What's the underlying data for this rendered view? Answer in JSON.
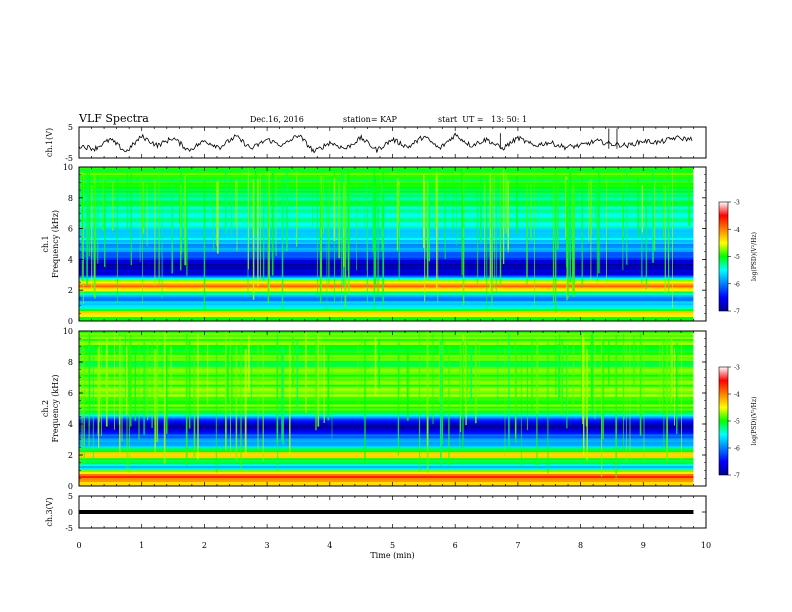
{
  "header": {
    "title": "VLF Spectra",
    "date": "Dec.16, 2016",
    "station": "station= KAP",
    "start": "start  UT =   13: 50: 1"
  },
  "chart_data": [
    {
      "type": "line",
      "panel": "ch1-waveform",
      "ylabel": "ch.1(V)",
      "ylim": [
        -5,
        5
      ],
      "yticks": [
        "5",
        "-5"
      ],
      "xlim": [
        0,
        10
      ],
      "series": [
        {
          "x": [
            0,
            0.25,
            0.5,
            0.75,
            1,
            1.25,
            1.5,
            1.75,
            2,
            2.25,
            2.5,
            2.75,
            3,
            3.25,
            3.5,
            3.75,
            4,
            4.25,
            4.5,
            4.75,
            5,
            5.25,
            5.5,
            5.75,
            6,
            6.25,
            6.5,
            6.75,
            7,
            7.25,
            7.5,
            7.75,
            8,
            8.25,
            8.5,
            8.75,
            9,
            9.25,
            9.5,
            9.8
          ],
          "values": [
            -1,
            -2,
            1,
            -3,
            2,
            -1,
            1.5,
            -2.5,
            0.5,
            -1.5,
            2,
            -2,
            1,
            -1,
            2.5,
            -3,
            0,
            -2,
            1.5,
            -2.5,
            1,
            -1.5,
            2,
            -2,
            2.5,
            -1,
            1,
            -2,
            1.5,
            -1,
            0,
            -1.5,
            -1,
            0.5,
            -0.5,
            -1,
            0.5,
            0,
            1.5,
            1
          ]
        }
      ]
    },
    {
      "type": "heatmap",
      "panel": "ch1-spectrogram",
      "ylabel": "ch.1\nFrequency (kHz)",
      "xlim": [
        0,
        10
      ],
      "ylim": [
        0,
        10
      ],
      "yticks": [
        "0",
        "2",
        "4",
        "6",
        "8",
        "10"
      ],
      "colorbar": {
        "label": "log(PSD)(V²/Hz)",
        "range": [
          -7,
          -3
        ],
        "ticks": [
          "-3",
          "-4",
          "-5",
          "-6",
          "-7"
        ]
      },
      "band_levels": [
        {
          "freq_khz": 0.2,
          "level": -5.0
        },
        {
          "freq_khz": 0.5,
          "level": -4.0
        },
        {
          "freq_khz": 0.8,
          "level": -5.5
        },
        {
          "freq_khz": 1.5,
          "level": -6.0
        },
        {
          "freq_khz": 2.0,
          "level": -4.5
        },
        {
          "freq_khz": 2.3,
          "level": -3.6
        },
        {
          "freq_khz": 3.0,
          "level": -6.5
        },
        {
          "freq_khz": 3.5,
          "level": -6.9
        },
        {
          "freq_khz": 4.5,
          "level": -6.0
        },
        {
          "freq_khz": 6.0,
          "level": -5.5
        },
        {
          "freq_khz": 8.0,
          "level": -5.2
        },
        {
          "freq_khz": 9.5,
          "level": -5.0
        }
      ]
    },
    {
      "type": "heatmap",
      "panel": "ch2-spectrogram",
      "ylabel": "ch.2\nFrequency (kHz)",
      "xlim": [
        0,
        10
      ],
      "ylim": [
        0,
        10
      ],
      "yticks": [
        "0",
        "2",
        "4",
        "6",
        "8",
        "10"
      ],
      "colorbar": {
        "label": "log(PSD)(V²/Hz)",
        "range": [
          -7,
          -3
        ],
        "ticks": [
          "-3",
          "-4",
          "-5",
          "-6",
          "-7"
        ]
      },
      "band_levels": [
        {
          "freq_khz": 0.2,
          "level": -4.5
        },
        {
          "freq_khz": 0.6,
          "level": -3.8
        },
        {
          "freq_khz": 1.2,
          "level": -5.8
        },
        {
          "freq_khz": 2.0,
          "level": -4.2
        },
        {
          "freq_khz": 2.5,
          "level": -5.5
        },
        {
          "freq_khz": 3.3,
          "level": -6.2
        },
        {
          "freq_khz": 3.8,
          "level": -6.9
        },
        {
          "freq_khz": 5.0,
          "level": -4.8
        },
        {
          "freq_khz": 6.5,
          "level": -4.8
        },
        {
          "freq_khz": 8.0,
          "level": -5.0
        },
        {
          "freq_khz": 9.5,
          "level": -4.8
        }
      ]
    },
    {
      "type": "line",
      "panel": "ch3-waveform",
      "ylabel": "ch.3(V)",
      "ylim": [
        -5,
        5
      ],
      "yticks": [
        "5",
        "0",
        "-5"
      ],
      "xlim": [
        0,
        10
      ],
      "xlabel": "Time (min)",
      "xticks": [
        "0",
        "1",
        "2",
        "3",
        "4",
        "5",
        "6",
        "7",
        "8",
        "9",
        "10"
      ],
      "series": [
        {
          "x": [
            0,
            9.8
          ],
          "values": [
            0,
            0
          ]
        }
      ]
    }
  ]
}
